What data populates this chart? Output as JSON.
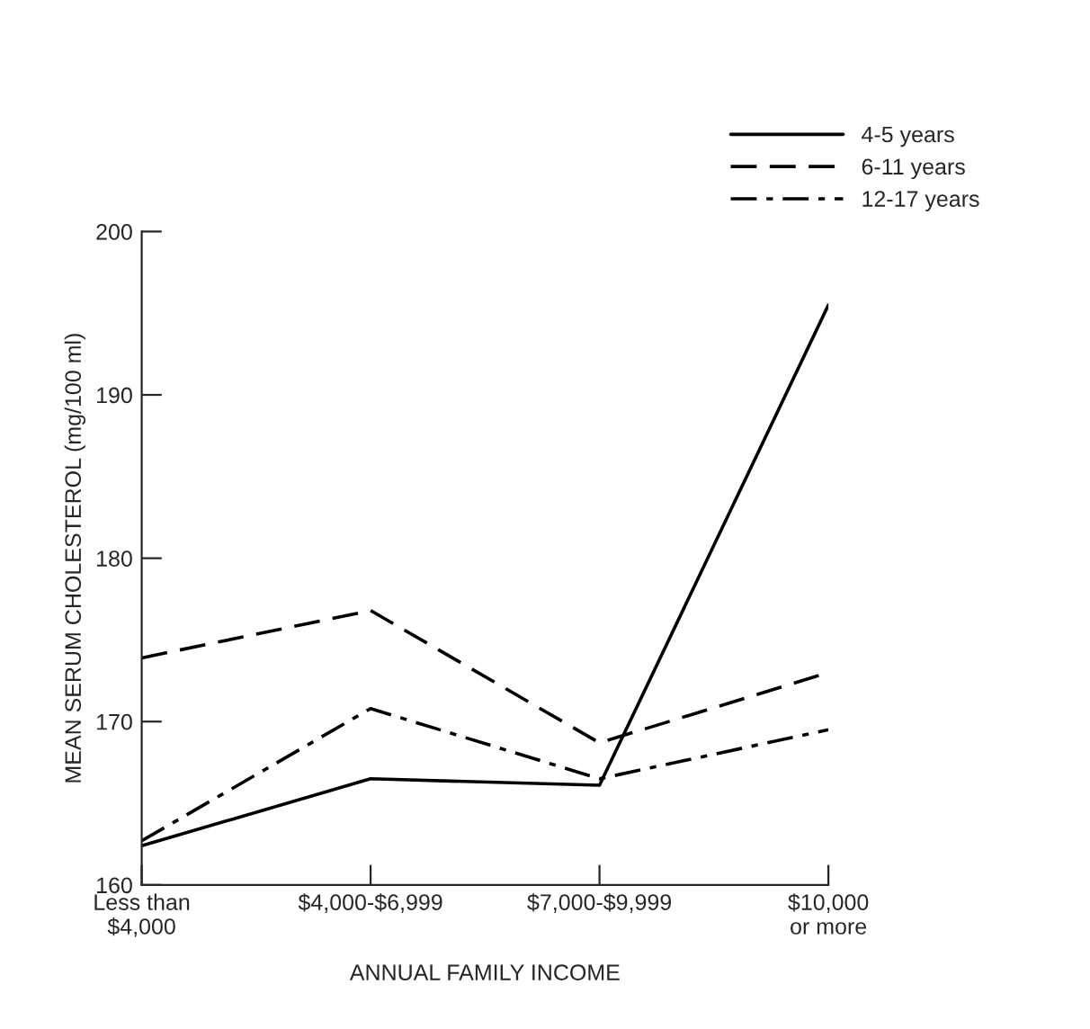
{
  "chart_data": {
    "type": "line",
    "xlabel": "ANNUAL FAMILY INCOME",
    "ylabel": "MEAN SERUM CHOLESTEROL (mg/100 ml)",
    "categories": [
      "Less than\n$4,000",
      "$4,000-$6,999",
      "$7,000-$9,999",
      "$10,000\nor more"
    ],
    "series": [
      {
        "name": "4-5 years",
        "color": "#000000",
        "line_style": "solid",
        "values": [
          162.4,
          166.5,
          166.1,
          195.5
        ]
      },
      {
        "name": "6-11 years",
        "color": "#000000",
        "line_style": "dashed",
        "values": [
          173.9,
          176.8,
          168.7,
          173.0
        ]
      },
      {
        "name": "12-17 years",
        "color": "#000000",
        "line_style": "dashdot",
        "values": [
          162.7,
          170.8,
          166.5,
          169.5
        ]
      }
    ],
    "ylim": [
      160,
      200
    ],
    "yticks": [
      160,
      170,
      180,
      190,
      200
    ],
    "grid": false,
    "legend": "top right",
    "marker": "none"
  }
}
